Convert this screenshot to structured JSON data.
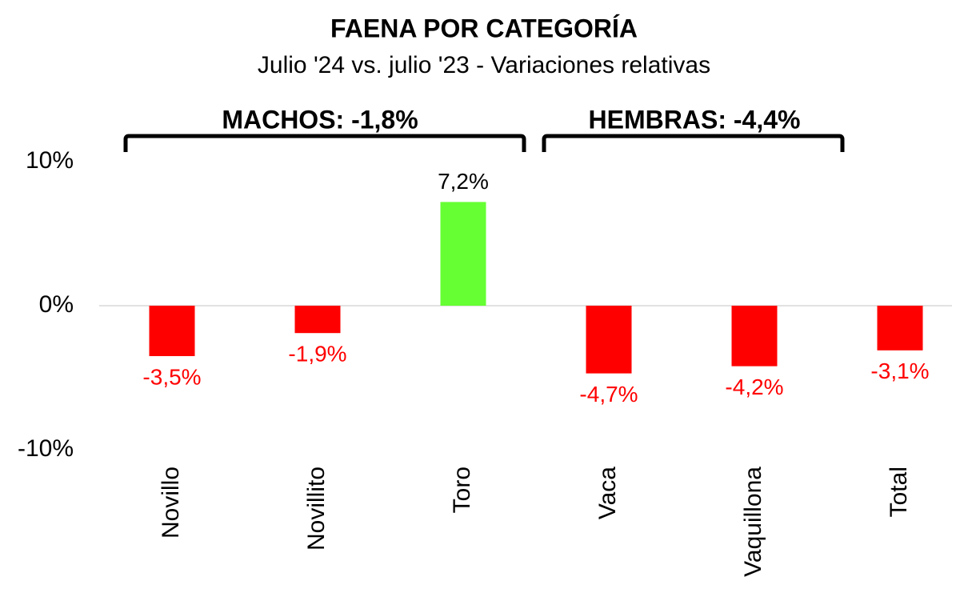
{
  "chart_data": {
    "type": "bar",
    "title": "FAENA POR CATEGORÍA",
    "subtitle": "Julio '24 vs. julio '23 - Variaciones relativas",
    "annotations": [
      "MACHOS: -1,8%",
      "HEMBRAS: -4,4%"
    ],
    "categories": [
      "Novillo",
      "Novillito",
      "Toro",
      "Vaca",
      "Vaquillona",
      "Total"
    ],
    "values": [
      -3.5,
      -1.9,
      7.2,
      -4.7,
      -4.2,
      -3.1
    ],
    "value_labels": [
      "-3,5%",
      "-1,9%",
      "7,2%",
      "-4,7%",
      "-4,2%",
      "-3,1%"
    ],
    "colors": [
      "#ff0000",
      "#ff0000",
      "#66ff33",
      "#ff0000",
      "#ff0000",
      "#ff0000"
    ],
    "ylim": [
      -10,
      10
    ],
    "yticks": [
      {
        "value": 10,
        "label": "10%"
      },
      {
        "value": 0,
        "label": "0%"
      },
      {
        "value": -10,
        "label": "-10%"
      }
    ]
  }
}
